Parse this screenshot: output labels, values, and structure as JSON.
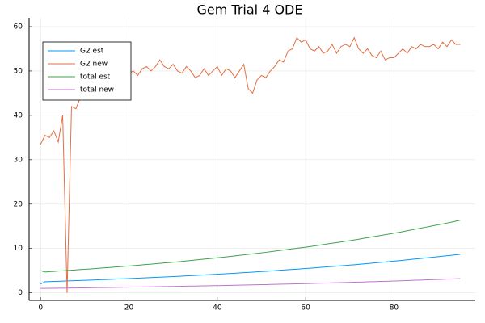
{
  "chart_data": {
    "type": "line",
    "title": "Gem Trial 4 ODE",
    "x": [
      0,
      1,
      2,
      3,
      4,
      5,
      6,
      7,
      8,
      9,
      10,
      11,
      12,
      13,
      14,
      15,
      16,
      17,
      18,
      19,
      20,
      21,
      22,
      23,
      24,
      25,
      26,
      27,
      28,
      29,
      30,
      31,
      32,
      33,
      34,
      35,
      36,
      37,
      38,
      39,
      40,
      41,
      42,
      43,
      44,
      45,
      46,
      47,
      48,
      49,
      50,
      51,
      52,
      53,
      54,
      55,
      56,
      57,
      58,
      59,
      60,
      61,
      62,
      63,
      64,
      65,
      66,
      67,
      68,
      69,
      70,
      71,
      72,
      73,
      74,
      75,
      76,
      77,
      78,
      79,
      80,
      81,
      82,
      83,
      84,
      85,
      86,
      87,
      88,
      89,
      90,
      91,
      92,
      93,
      94,
      95
    ],
    "series": [
      {
        "name": "G2 est",
        "color": "#009af9",
        "values": [
          2.0,
          2.5,
          2.54,
          2.57,
          2.61,
          2.64,
          2.68,
          2.72,
          2.75,
          2.79,
          2.82,
          2.86,
          2.9,
          2.94,
          2.98,
          3.02,
          3.06,
          3.1,
          3.14,
          3.18,
          3.22,
          3.26,
          3.31,
          3.35,
          3.4,
          3.44,
          3.49,
          3.54,
          3.58,
          3.63,
          3.67,
          3.72,
          3.77,
          3.83,
          3.88,
          3.93,
          3.99,
          4.04,
          4.09,
          4.14,
          4.2,
          4.25,
          4.31,
          4.37,
          4.43,
          4.49,
          4.55,
          4.61,
          4.67,
          4.74,
          4.8,
          4.86,
          4.93,
          5.0,
          5.07,
          5.14,
          5.21,
          5.28,
          5.34,
          5.41,
          5.48,
          5.55,
          5.63,
          5.71,
          5.79,
          5.87,
          5.95,
          6.02,
          6.1,
          6.18,
          6.26,
          6.34,
          6.43,
          6.52,
          6.61,
          6.7,
          6.79,
          6.88,
          6.97,
          7.06,
          7.15,
          7.24,
          7.34,
          7.44,
          7.55,
          7.65,
          7.75,
          7.85,
          7.95,
          8.06,
          8.16,
          8.26,
          8.37,
          8.48,
          8.59,
          8.7
        ]
      },
      {
        "name": "G2 new",
        "color": "#e26f46",
        "values": [
          33.5,
          35.5,
          35,
          36.5,
          34,
          40,
          0,
          42,
          41.5,
          44,
          46,
          45,
          47,
          46.5,
          48.5,
          47,
          48,
          50,
          49,
          50.5,
          49.5,
          50,
          49,
          50.5,
          51,
          50,
          51,
          52.5,
          51,
          50.5,
          51.5,
          50,
          49.5,
          51,
          50,
          48.5,
          49,
          50.5,
          49,
          50,
          51,
          49,
          50.5,
          50,
          48.5,
          50,
          51.5,
          46,
          45,
          48,
          49,
          48.5,
          50,
          51,
          52.5,
          52,
          54.5,
          55,
          57.5,
          56.5,
          57,
          55,
          54.5,
          55.5,
          54,
          54.5,
          56,
          54,
          55.5,
          56,
          55.5,
          57.5,
          55,
          54,
          55,
          53.5,
          53,
          54.5,
          52.5,
          53,
          53,
          54,
          55,
          54,
          55.5,
          55,
          56,
          55.5,
          55.5,
          56,
          55,
          56.5,
          55.5,
          57,
          56,
          56
        ]
      },
      {
        "name": "total est",
        "color": "#3da44d",
        "values": [
          5.0,
          4.7,
          4.78,
          4.83,
          4.91,
          4.96,
          5.04,
          5.11,
          5.17,
          5.25,
          5.3,
          5.38,
          5.45,
          5.53,
          5.6,
          5.68,
          5.75,
          5.83,
          5.9,
          5.98,
          6.05,
          6.13,
          6.22,
          6.3,
          6.39,
          6.47,
          6.56,
          6.66,
          6.73,
          6.82,
          6.9,
          6.99,
          7.09,
          7.2,
          7.29,
          7.39,
          7.5,
          7.6,
          7.69,
          7.78,
          7.9,
          7.99,
          8.1,
          8.22,
          8.33,
          8.44,
          8.55,
          8.67,
          8.78,
          8.91,
          9.02,
          9.14,
          9.27,
          9.4,
          9.53,
          9.66,
          9.79,
          9.93,
          10.04,
          10.17,
          10.3,
          10.43,
          10.58,
          10.73,
          10.89,
          11.04,
          11.19,
          11.32,
          11.47,
          11.62,
          11.77,
          11.92,
          12.09,
          12.26,
          12.43,
          12.6,
          12.77,
          12.93,
          13.1,
          13.27,
          13.44,
          13.61,
          13.8,
          13.99,
          14.19,
          14.38,
          14.57,
          14.76,
          14.95,
          15.15,
          15.34,
          15.53,
          15.74,
          15.94,
          16.15,
          16.36
        ]
      },
      {
        "name": "total new",
        "color": "#c271d2",
        "values": [
          1.0,
          1.01,
          1.02,
          1.04,
          1.05,
          1.06,
          1.08,
          1.09,
          1.1,
          1.12,
          1.13,
          1.15,
          1.16,
          1.18,
          1.19,
          1.21,
          1.22,
          1.24,
          1.25,
          1.27,
          1.28,
          1.3,
          1.31,
          1.33,
          1.34,
          1.36,
          1.38,
          1.39,
          1.41,
          1.42,
          1.44,
          1.46,
          1.48,
          1.5,
          1.52,
          1.54,
          1.55,
          1.57,
          1.59,
          1.61,
          1.63,
          1.65,
          1.67,
          1.69,
          1.71,
          1.74,
          1.76,
          1.78,
          1.8,
          1.82,
          1.84,
          1.86,
          1.89,
          1.91,
          1.94,
          1.96,
          1.98,
          2.01,
          2.03,
          2.06,
          2.08,
          2.11,
          2.14,
          2.17,
          2.19,
          2.22,
          2.25,
          2.28,
          2.3,
          2.33,
          2.36,
          2.39,
          2.42,
          2.45,
          2.48,
          2.51,
          2.54,
          2.57,
          2.6,
          2.63,
          2.66,
          2.7,
          2.73,
          2.77,
          2.8,
          2.84,
          2.87,
          2.91,
          2.94,
          2.98,
          3.01,
          3.05,
          3.09,
          3.12,
          3.16,
          3.2
        ]
      }
    ],
    "xlim": [
      -2.6,
      98.4
    ],
    "ylim": [
      -1.7,
      62
    ],
    "xticks": [
      0,
      20,
      40,
      60,
      80
    ],
    "yticks": [
      0,
      10,
      20,
      30,
      40,
      50,
      60
    ],
    "grid": true,
    "legend": "top-left"
  }
}
